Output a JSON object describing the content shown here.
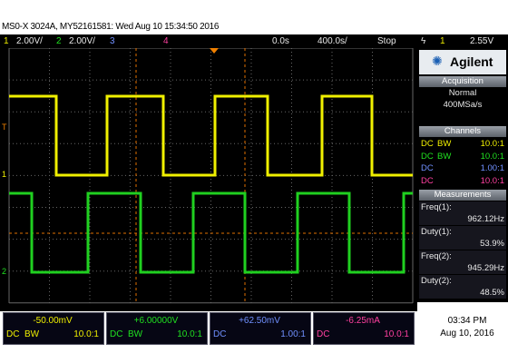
{
  "header": {
    "title": "MS0-X 3024A, MY52161581: Wed Aug 10 15:34:50 2016"
  },
  "status_bar": {
    "ch1_label": "1",
    "ch1_scale": "2.00V/",
    "ch2_label": "2",
    "ch2_scale": "2.00V/",
    "ch3_label": "3",
    "ch4_label": "4",
    "time_offset": "0.0s",
    "time_scale": "400.0s/",
    "run_state": "Stop",
    "trigger_channel": "1",
    "trigger_level": "2.55V"
  },
  "markers": [
    "T",
    "1",
    "2"
  ],
  "panel": {
    "brand": "Agilent",
    "acquisition": {
      "title": "Acquisition",
      "mode": "Normal",
      "rate": "400MSa/s"
    },
    "channels": {
      "title": "Channels",
      "rows": [
        {
          "coupling": "DC",
          "bw": "BW",
          "probe": "10.0:1"
        },
        {
          "coupling": "DC",
          "bw": "BW",
          "probe": "10.0:1"
        },
        {
          "coupling": "DC",
          "probe": "1.00:1"
        },
        {
          "coupling": "DC",
          "probe": "10.0:1"
        }
      ]
    },
    "measurements": {
      "title": "Measurements",
      "items": [
        {
          "label": "Freq(1):",
          "value": "962.12Hz"
        },
        {
          "label": "Duty(1):",
          "value": "53.9%"
        },
        {
          "label": "Freq(2):",
          "value": "945.29Hz"
        },
        {
          "label": "Duty(2):",
          "value": "48.5%"
        }
      ]
    }
  },
  "offsets": [
    {
      "offset": "-50.00mV",
      "coupling": "DC",
      "bw": "BW",
      "probe": "10.0:1"
    },
    {
      "offset": "+6.00000V",
      "coupling": "DC",
      "bw": "BW",
      "probe": "10.0:1"
    },
    {
      "offset": "+62.50mV",
      "coupling": "DC",
      "probe": "1.00:1"
    },
    {
      "offset": "-6.25mA",
      "coupling": "DC",
      "probe": "10.0:1"
    }
  ],
  "clock": {
    "time": "03:34 PM",
    "date": "Aug 10, 2016"
  }
}
